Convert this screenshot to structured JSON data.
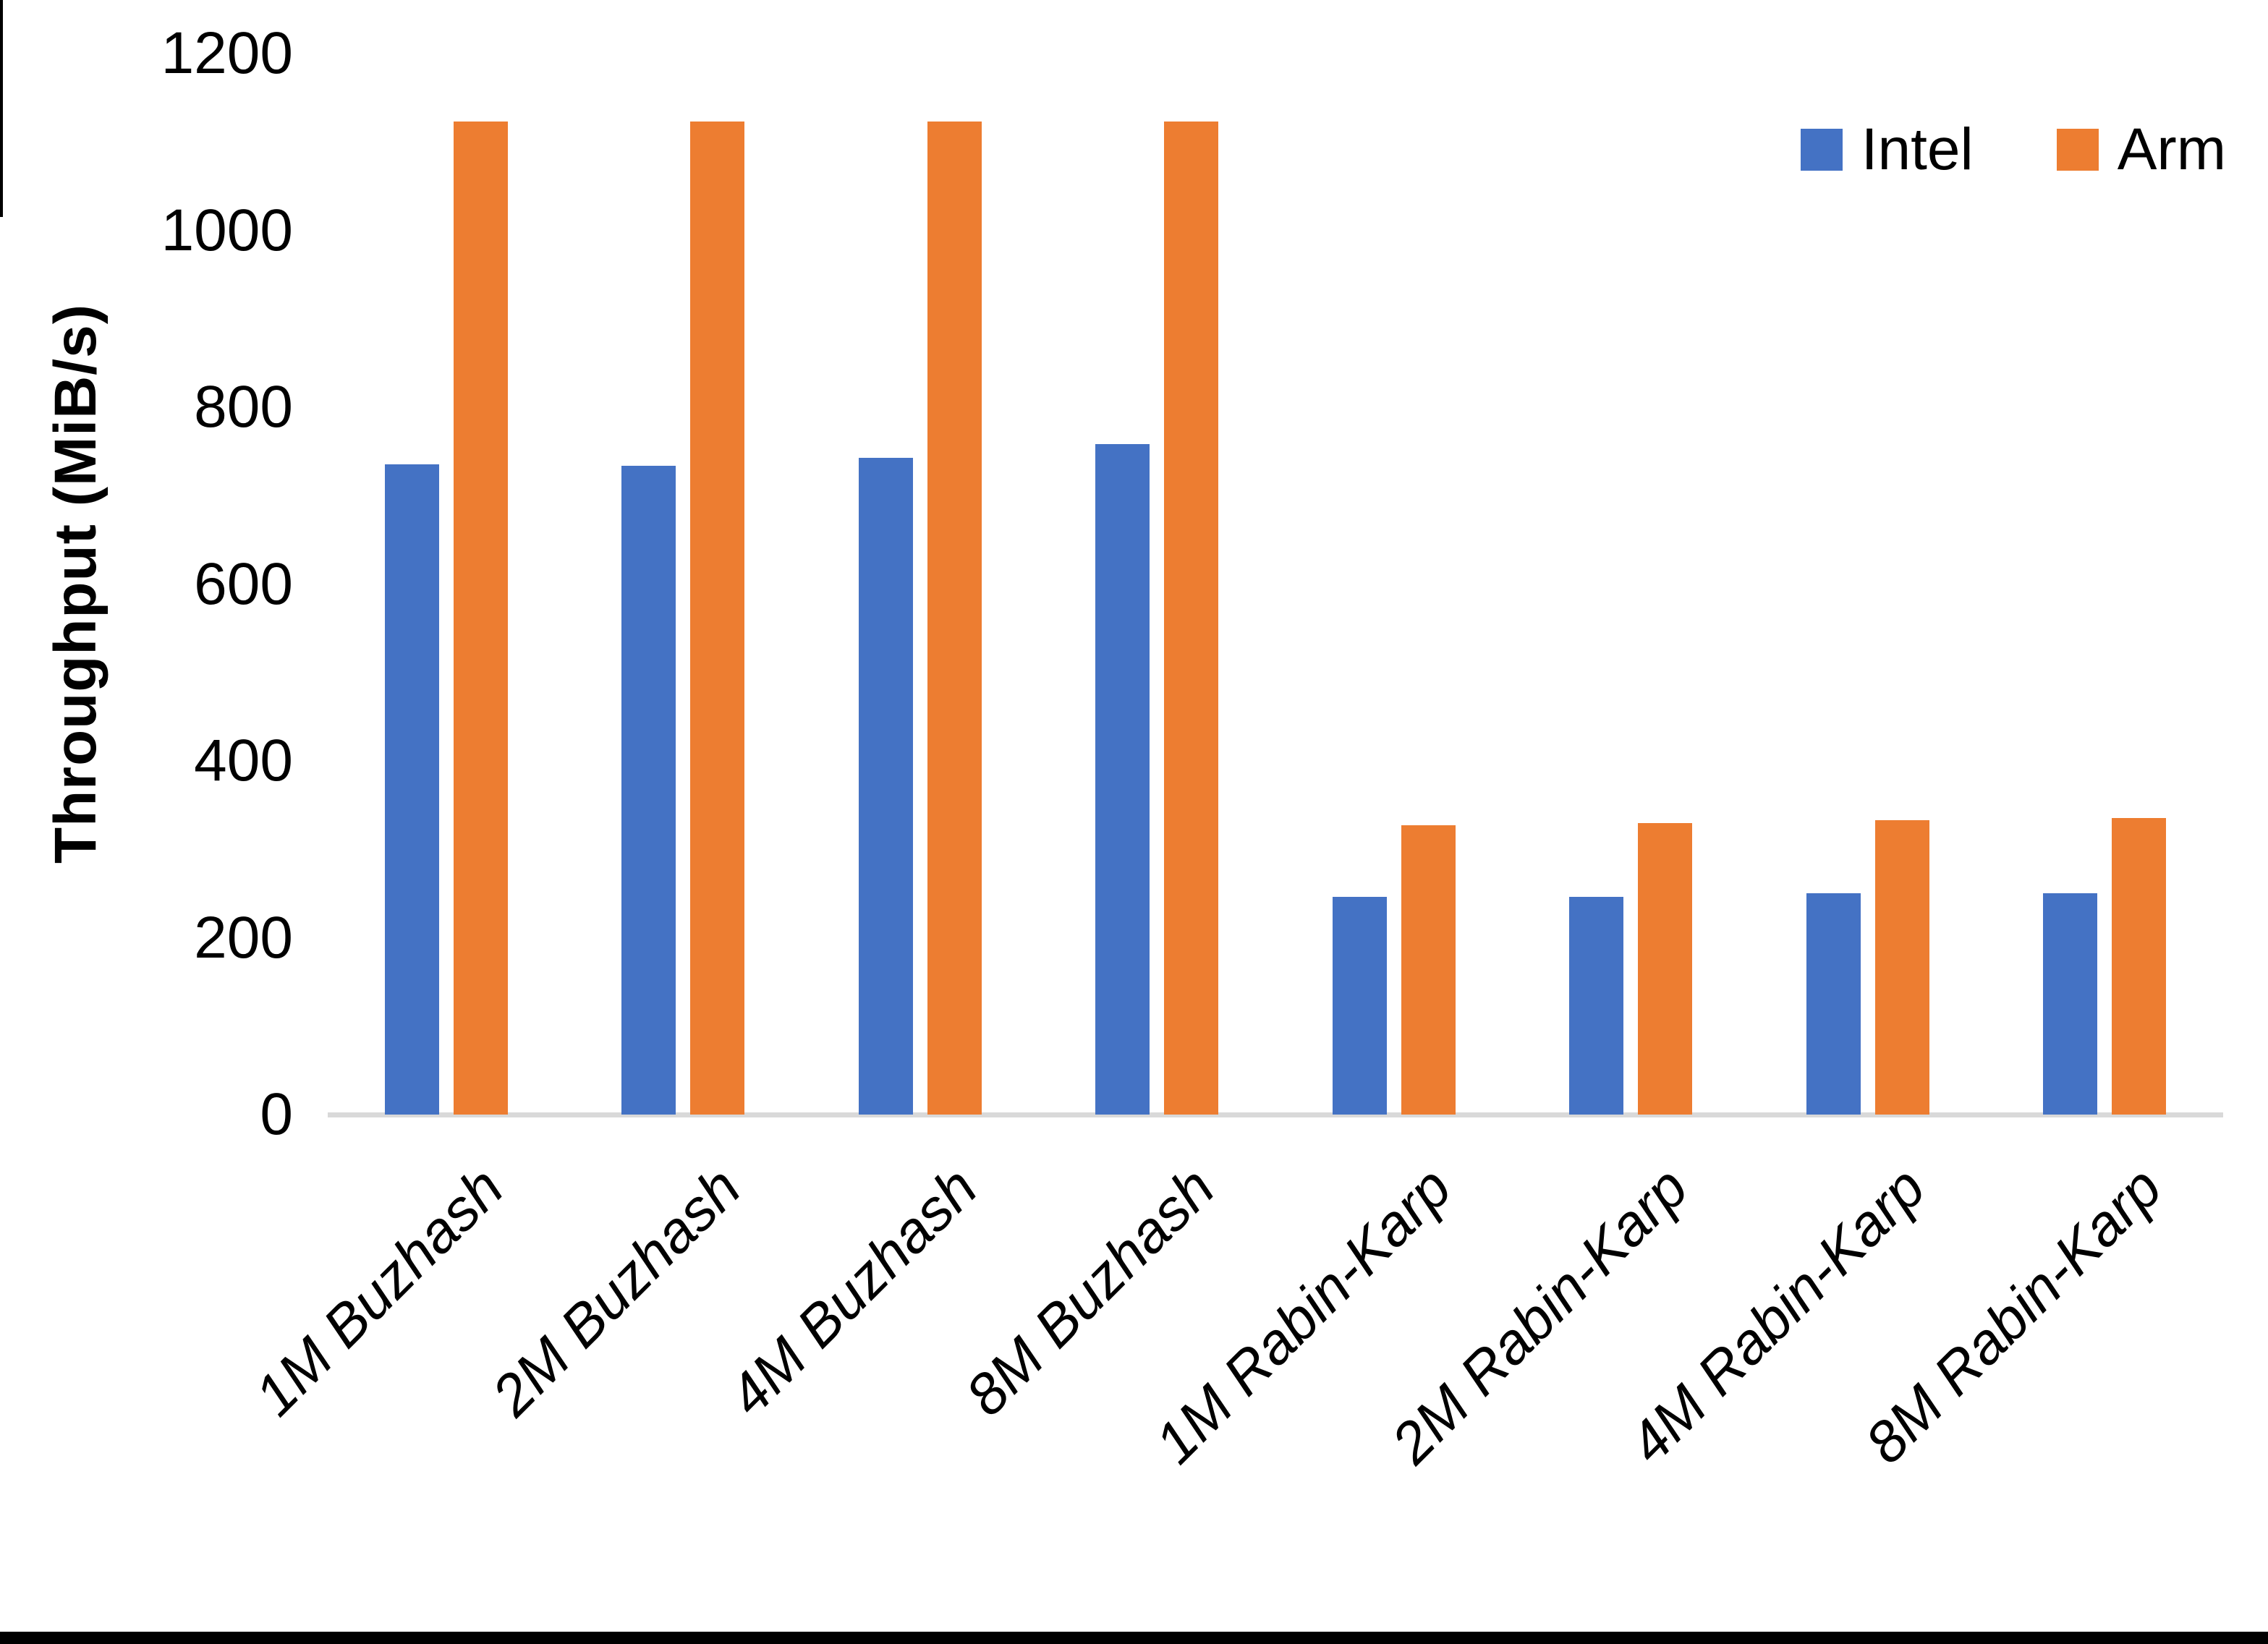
{
  "chart_data": {
    "type": "bar",
    "title": "",
    "ylabel": "Throughput (MiB/s)",
    "xlabel": "",
    "ylim": [
      0,
      1200
    ],
    "yticks": [
      0,
      200,
      400,
      600,
      800,
      1000,
      1200
    ],
    "grid": false,
    "legend_position": "top-right",
    "categories": [
      "1M Buzhash",
      "2M Buzhash",
      "4M Buzhash",
      "8M Buzhash",
      "1M Rabin-Karp",
      "2M Rabin-Karp",
      "4M Rabin-Karp",
      "8M Rabin-Karp"
    ],
    "series": [
      {
        "name": "Intel",
        "color": "#4472C4",
        "values": [
          735,
          734,
          743,
          758,
          246,
          246,
          250,
          250
        ]
      },
      {
        "name": "Arm",
        "color": "#ED7D31",
        "values": [
          1123,
          1123,
          1123,
          1123,
          327,
          330,
          333,
          335
        ]
      }
    ]
  },
  "colors": {
    "axis_line": "#d9d9d9",
    "intel": "#4472C4",
    "arm": "#ED7D31",
    "bottom_border": "#000000"
  }
}
